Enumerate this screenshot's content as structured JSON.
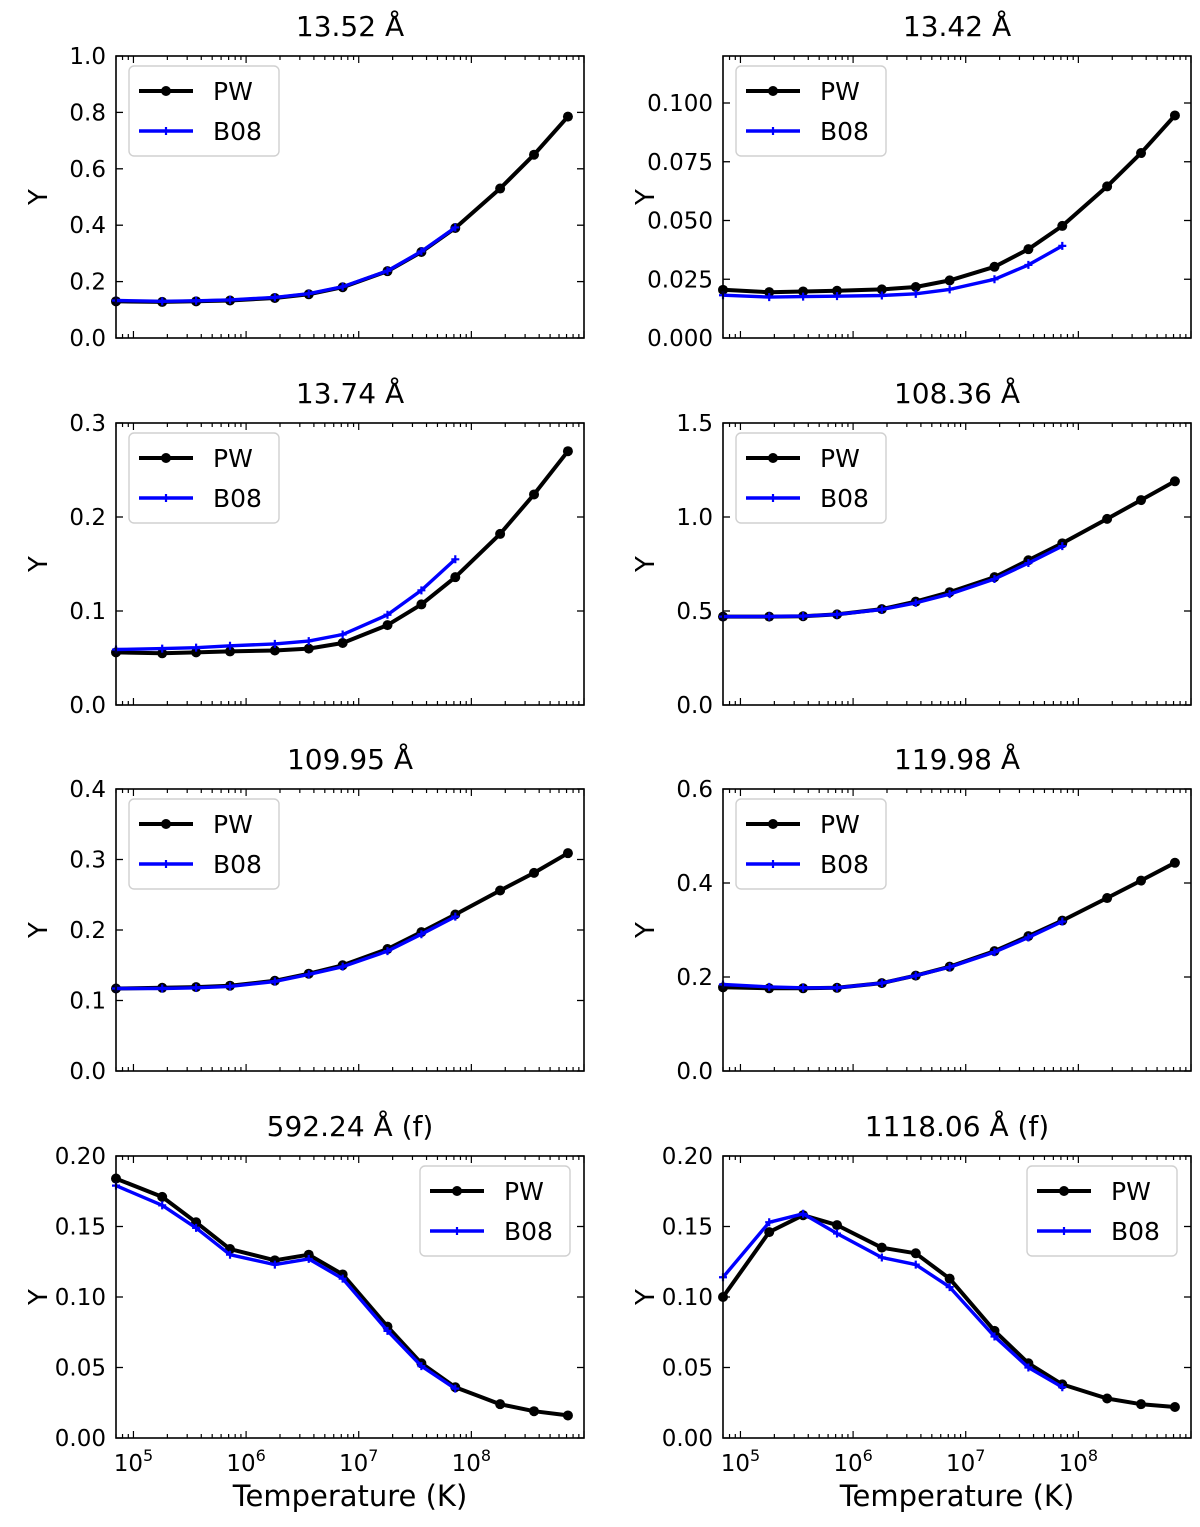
{
  "figure": {
    "xlabel": "Temperature (K)",
    "legend_labels": [
      "PW",
      "B08"
    ]
  },
  "colors": {
    "PW": "#000000",
    "B08": "#0000ff"
  },
  "chart_data": [
    {
      "type": "line",
      "title": "13.52 Å",
      "xlabel": "",
      "ylabel": "Y",
      "xscale": "log",
      "xlim": [
        70000,
        1000000000
      ],
      "ylim": [
        0,
        1.0
      ],
      "yticks": [
        "0.0",
        "0.2",
        "0.4",
        "0.6",
        "0.8",
        "1.0"
      ],
      "legend": "upper left",
      "series": [
        {
          "name": "PW",
          "x": [
            70000,
            180000,
            360000,
            720000,
            1800000,
            3600000,
            7200000,
            18000000,
            36000000,
            72000000,
            180000000,
            360000000,
            720000000
          ],
          "y": [
            0.13,
            0.128,
            0.13,
            0.133,
            0.142,
            0.155,
            0.18,
            0.237,
            0.305,
            0.39,
            0.53,
            0.65,
            0.785
          ]
        },
        {
          "name": "B08",
          "x": [
            70000,
            180000,
            360000,
            720000,
            1800000,
            3600000,
            7200000,
            18000000,
            36000000,
            72000000
          ],
          "y": [
            0.133,
            0.13,
            0.132,
            0.135,
            0.144,
            0.157,
            0.182,
            0.238,
            0.307,
            0.392
          ]
        }
      ]
    },
    {
      "type": "line",
      "title": "13.42 Å",
      "xlabel": "",
      "ylabel": "Y",
      "xscale": "log",
      "xlim": [
        70000,
        1000000000
      ],
      "ylim": [
        0,
        0.12
      ],
      "yticks": [
        "0.000",
        "0.025",
        "0.050",
        "0.075",
        "0.100"
      ],
      "legend": "upper left",
      "series": [
        {
          "name": "PW",
          "x": [
            70000,
            180000,
            360000,
            720000,
            1800000,
            3600000,
            7200000,
            18000000,
            36000000,
            72000000,
            180000000,
            360000000,
            720000000
          ],
          "y": [
            0.0205,
            0.0195,
            0.0198,
            0.0201,
            0.0207,
            0.0217,
            0.0245,
            0.0303,
            0.0378,
            0.0477,
            0.0645,
            0.0787,
            0.0947
          ]
        },
        {
          "name": "B08",
          "x": [
            70000,
            180000,
            360000,
            720000,
            1800000,
            3600000,
            7200000,
            18000000,
            36000000,
            72000000
          ],
          "y": [
            0.0182,
            0.0174,
            0.0176,
            0.0178,
            0.0181,
            0.0188,
            0.0207,
            0.025,
            0.0311,
            0.0392
          ]
        }
      ]
    },
    {
      "type": "line",
      "title": "13.74 Å",
      "xlabel": "",
      "ylabel": "Y",
      "xscale": "log",
      "xlim": [
        70000,
        1000000000
      ],
      "ylim": [
        0,
        0.3
      ],
      "yticks": [
        "0.0",
        "0.1",
        "0.2",
        "0.3"
      ],
      "legend": "upper left",
      "series": [
        {
          "name": "PW",
          "x": [
            70000,
            180000,
            360000,
            720000,
            1800000,
            3600000,
            7200000,
            18000000,
            36000000,
            72000000,
            180000000,
            360000000,
            720000000
          ],
          "y": [
            0.056,
            0.055,
            0.056,
            0.057,
            0.058,
            0.06,
            0.066,
            0.085,
            0.107,
            0.136,
            0.182,
            0.224,
            0.27
          ]
        },
        {
          "name": "B08",
          "x": [
            70000,
            180000,
            360000,
            720000,
            1800000,
            3600000,
            7200000,
            18000000,
            36000000,
            72000000
          ],
          "y": [
            0.059,
            0.06,
            0.061,
            0.063,
            0.065,
            0.068,
            0.075,
            0.096,
            0.122,
            0.155
          ]
        }
      ]
    },
    {
      "type": "line",
      "title": "108.36 Å",
      "xlabel": "",
      "ylabel": "Y",
      "xscale": "log",
      "xlim": [
        70000,
        1000000000
      ],
      "ylim": [
        0,
        1.5
      ],
      "yticks": [
        "0.0",
        "0.5",
        "1.0",
        "1.5"
      ],
      "legend": "upper left",
      "series": [
        {
          "name": "PW",
          "x": [
            70000,
            180000,
            360000,
            720000,
            1800000,
            3600000,
            7200000,
            18000000,
            36000000,
            72000000,
            180000000,
            360000000,
            720000000
          ],
          "y": [
            0.47,
            0.47,
            0.472,
            0.482,
            0.51,
            0.55,
            0.6,
            0.68,
            0.77,
            0.86,
            0.99,
            1.09,
            1.19
          ]
        },
        {
          "name": "B08",
          "x": [
            70000,
            180000,
            360000,
            720000,
            1800000,
            3600000,
            7200000,
            18000000,
            36000000,
            72000000
          ],
          "y": [
            0.47,
            0.471,
            0.473,
            0.482,
            0.508,
            0.543,
            0.59,
            0.67,
            0.755,
            0.845
          ]
        }
      ]
    },
    {
      "type": "line",
      "title": "109.95 Å",
      "xlabel": "",
      "ylabel": "Y",
      "xscale": "log",
      "xlim": [
        70000,
        1000000000
      ],
      "ylim": [
        0,
        0.4
      ],
      "yticks": [
        "0.0",
        "0.1",
        "0.2",
        "0.3",
        "0.4"
      ],
      "legend": "upper left",
      "series": [
        {
          "name": "PW",
          "x": [
            70000,
            180000,
            360000,
            720000,
            1800000,
            3600000,
            7200000,
            18000000,
            36000000,
            72000000,
            180000000,
            360000000,
            720000000
          ],
          "y": [
            0.117,
            0.118,
            0.119,
            0.121,
            0.128,
            0.138,
            0.15,
            0.173,
            0.197,
            0.222,
            0.256,
            0.281,
            0.309
          ]
        },
        {
          "name": "B08",
          "x": [
            70000,
            180000,
            360000,
            720000,
            1800000,
            3600000,
            7200000,
            18000000,
            36000000,
            72000000
          ],
          "y": [
            0.117,
            0.117,
            0.118,
            0.12,
            0.127,
            0.137,
            0.148,
            0.17,
            0.194,
            0.219
          ]
        }
      ]
    },
    {
      "type": "line",
      "title": "119.98 Å",
      "xlabel": "",
      "ylabel": "Y",
      "xscale": "log",
      "xlim": [
        70000,
        1000000000
      ],
      "ylim": [
        0,
        0.6
      ],
      "yticks": [
        "0.0",
        "0.2",
        "0.4",
        "0.6"
      ],
      "legend": "upper left",
      "series": [
        {
          "name": "PW",
          "x": [
            70000,
            180000,
            360000,
            720000,
            1800000,
            3600000,
            7200000,
            18000000,
            36000000,
            72000000,
            180000000,
            360000000,
            720000000
          ],
          "y": [
            0.178,
            0.176,
            0.176,
            0.177,
            0.187,
            0.203,
            0.222,
            0.255,
            0.287,
            0.32,
            0.368,
            0.405,
            0.443
          ]
        },
        {
          "name": "B08",
          "x": [
            70000,
            180000,
            360000,
            720000,
            1800000,
            3600000,
            7200000,
            18000000,
            36000000,
            72000000
          ],
          "y": [
            0.184,
            0.179,
            0.177,
            0.177,
            0.187,
            0.203,
            0.221,
            0.253,
            0.284,
            0.318
          ]
        }
      ]
    },
    {
      "type": "line",
      "title": "592.24 Å (f)",
      "xlabel": "Temperature (K)",
      "ylabel": "Y",
      "xscale": "log",
      "xlim": [
        70000,
        1000000000
      ],
      "ylim": [
        0,
        0.2
      ],
      "yticks": [
        "0.00",
        "0.05",
        "0.10",
        "0.15",
        "0.20"
      ],
      "legend": "upper right",
      "series": [
        {
          "name": "PW",
          "x": [
            70000,
            180000,
            360000,
            720000,
            1800000,
            3600000,
            7200000,
            18000000,
            36000000,
            72000000,
            180000000,
            360000000,
            720000000
          ],
          "y": [
            0.184,
            0.171,
            0.153,
            0.134,
            0.126,
            0.13,
            0.116,
            0.079,
            0.053,
            0.036,
            0.024,
            0.019,
            0.016
          ]
        },
        {
          "name": "B08",
          "x": [
            70000,
            180000,
            360000,
            720000,
            1800000,
            3600000,
            7200000,
            18000000,
            36000000,
            72000000
          ],
          "y": [
            0.179,
            0.165,
            0.149,
            0.13,
            0.123,
            0.127,
            0.113,
            0.076,
            0.051,
            0.035
          ]
        }
      ]
    },
    {
      "type": "line",
      "title": "1118.06 Å (f)",
      "xlabel": "Temperature (K)",
      "ylabel": "Y",
      "xscale": "log",
      "xlim": [
        70000,
        1000000000
      ],
      "ylim": [
        0,
        0.2
      ],
      "yticks": [
        "0.00",
        "0.05",
        "0.10",
        "0.15",
        "0.20"
      ],
      "legend": "upper right",
      "series": [
        {
          "name": "PW",
          "x": [
            70000,
            180000,
            360000,
            720000,
            1800000,
            3600000,
            7200000,
            18000000,
            36000000,
            72000000,
            180000000,
            360000000,
            720000000
          ],
          "y": [
            0.1,
            0.146,
            0.158,
            0.151,
            0.135,
            0.131,
            0.113,
            0.076,
            0.053,
            0.038,
            0.028,
            0.024,
            0.022
          ]
        },
        {
          "name": "B08",
          "x": [
            70000,
            180000,
            360000,
            720000,
            1800000,
            3600000,
            7200000,
            18000000,
            36000000,
            72000000
          ],
          "y": [
            0.114,
            0.153,
            0.159,
            0.145,
            0.128,
            0.123,
            0.107,
            0.072,
            0.05,
            0.036
          ]
        }
      ]
    }
  ]
}
